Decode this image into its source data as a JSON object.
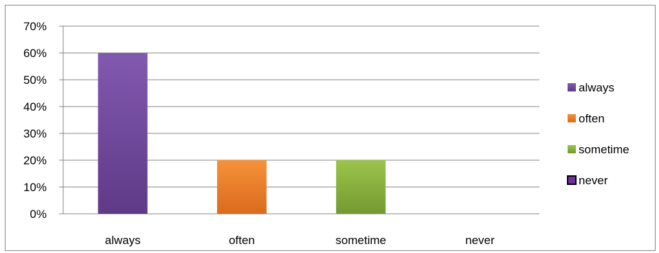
{
  "chart_data": {
    "type": "bar",
    "categories": [
      "always",
      "often",
      "sometime",
      "never"
    ],
    "values": [
      60,
      20,
      20,
      0
    ],
    "ylim": [
      0,
      70
    ],
    "yticks": [
      "0%",
      "10%",
      "20%",
      "30%",
      "40%",
      "50%",
      "60%",
      "70%"
    ],
    "ytick_values": [
      0,
      10,
      20,
      30,
      40,
      50,
      60,
      70
    ],
    "grid": true,
    "legend_placement": "right",
    "legend": [
      "always",
      "often",
      "sometime",
      "never"
    ],
    "colors": {
      "always": "#7B52A8",
      "often": "#E87A22",
      "sometime": "#8DB43C",
      "never": "#7030A0"
    }
  }
}
